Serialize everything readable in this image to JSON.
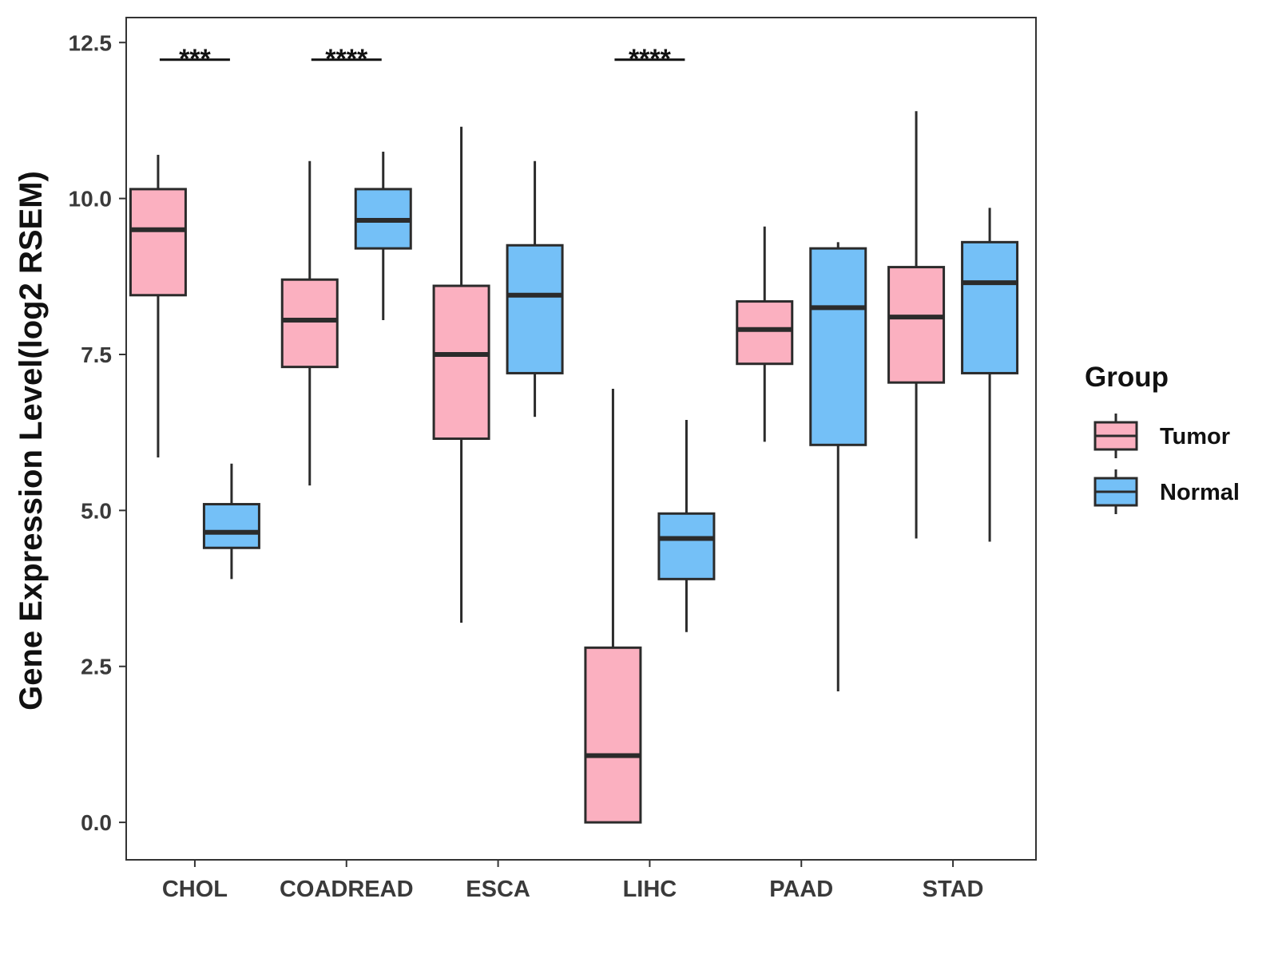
{
  "chart_data": {
    "type": "boxplot",
    "title": "",
    "xlabel": "",
    "ylabel": "Gene Expression Level(log2 RSEM)",
    "ylim": [
      -0.6,
      12.9
    ],
    "yticks": [
      0.0,
      2.5,
      5.0,
      7.5,
      10.0,
      12.5
    ],
    "ytick_labels": [
      "0.0",
      "2.5",
      "5.0",
      "7.5",
      "10.0",
      "12.5"
    ],
    "categories": [
      "CHOL",
      "COADREAD",
      "ESCA",
      "LIHC",
      "PAAD",
      "STAD"
    ],
    "legend": {
      "title": "Group",
      "position": "right",
      "entries": [
        "Tumor",
        "Normal"
      ]
    },
    "colors": {
      "Tumor": "#fbb0c0",
      "Normal": "#74c0f7",
      "stroke": "#2b2b2b"
    },
    "series": [
      {
        "name": "Tumor",
        "boxes": [
          {
            "whisker_low": 5.85,
            "q1": 8.45,
            "median": 9.5,
            "q3": 10.15,
            "whisker_high": 10.7
          },
          {
            "whisker_low": 5.4,
            "q1": 7.3,
            "median": 8.05,
            "q3": 8.7,
            "whisker_high": 10.6
          },
          {
            "whisker_low": 3.2,
            "q1": 6.15,
            "median": 7.5,
            "q3": 8.6,
            "whisker_high": 11.15
          },
          {
            "whisker_low": 0.0,
            "q1": 0.0,
            "median": 1.07,
            "q3": 2.8,
            "whisker_high": 6.95
          },
          {
            "whisker_low": 6.1,
            "q1": 7.35,
            "median": 7.9,
            "q3": 8.35,
            "whisker_high": 9.55
          },
          {
            "whisker_low": 4.55,
            "q1": 7.05,
            "median": 8.1,
            "q3": 8.9,
            "whisker_high": 11.4
          }
        ]
      },
      {
        "name": "Normal",
        "boxes": [
          {
            "whisker_low": 3.9,
            "q1": 4.4,
            "median": 4.65,
            "q3": 5.1,
            "whisker_high": 5.75
          },
          {
            "whisker_low": 8.05,
            "q1": 9.2,
            "median": 9.65,
            "q3": 10.15,
            "whisker_high": 10.75
          },
          {
            "whisker_low": 6.5,
            "q1": 7.2,
            "median": 8.45,
            "q3": 9.25,
            "whisker_high": 10.6
          },
          {
            "whisker_low": 3.05,
            "q1": 3.9,
            "median": 4.55,
            "q3": 4.95,
            "whisker_high": 6.45
          },
          {
            "whisker_low": 2.1,
            "q1": 6.05,
            "median": 8.25,
            "q3": 9.2,
            "whisker_high": 9.3
          },
          {
            "whisker_low": 4.5,
            "q1": 7.2,
            "median": 8.65,
            "q3": 9.3,
            "whisker_high": 9.85
          }
        ]
      }
    ],
    "significance": [
      {
        "category": "CHOL",
        "label": "***",
        "y": 12.25
      },
      {
        "category": "COADREAD",
        "label": "****",
        "y": 12.25
      },
      {
        "category": "LIHC",
        "label": "****",
        "y": 12.25
      }
    ]
  }
}
